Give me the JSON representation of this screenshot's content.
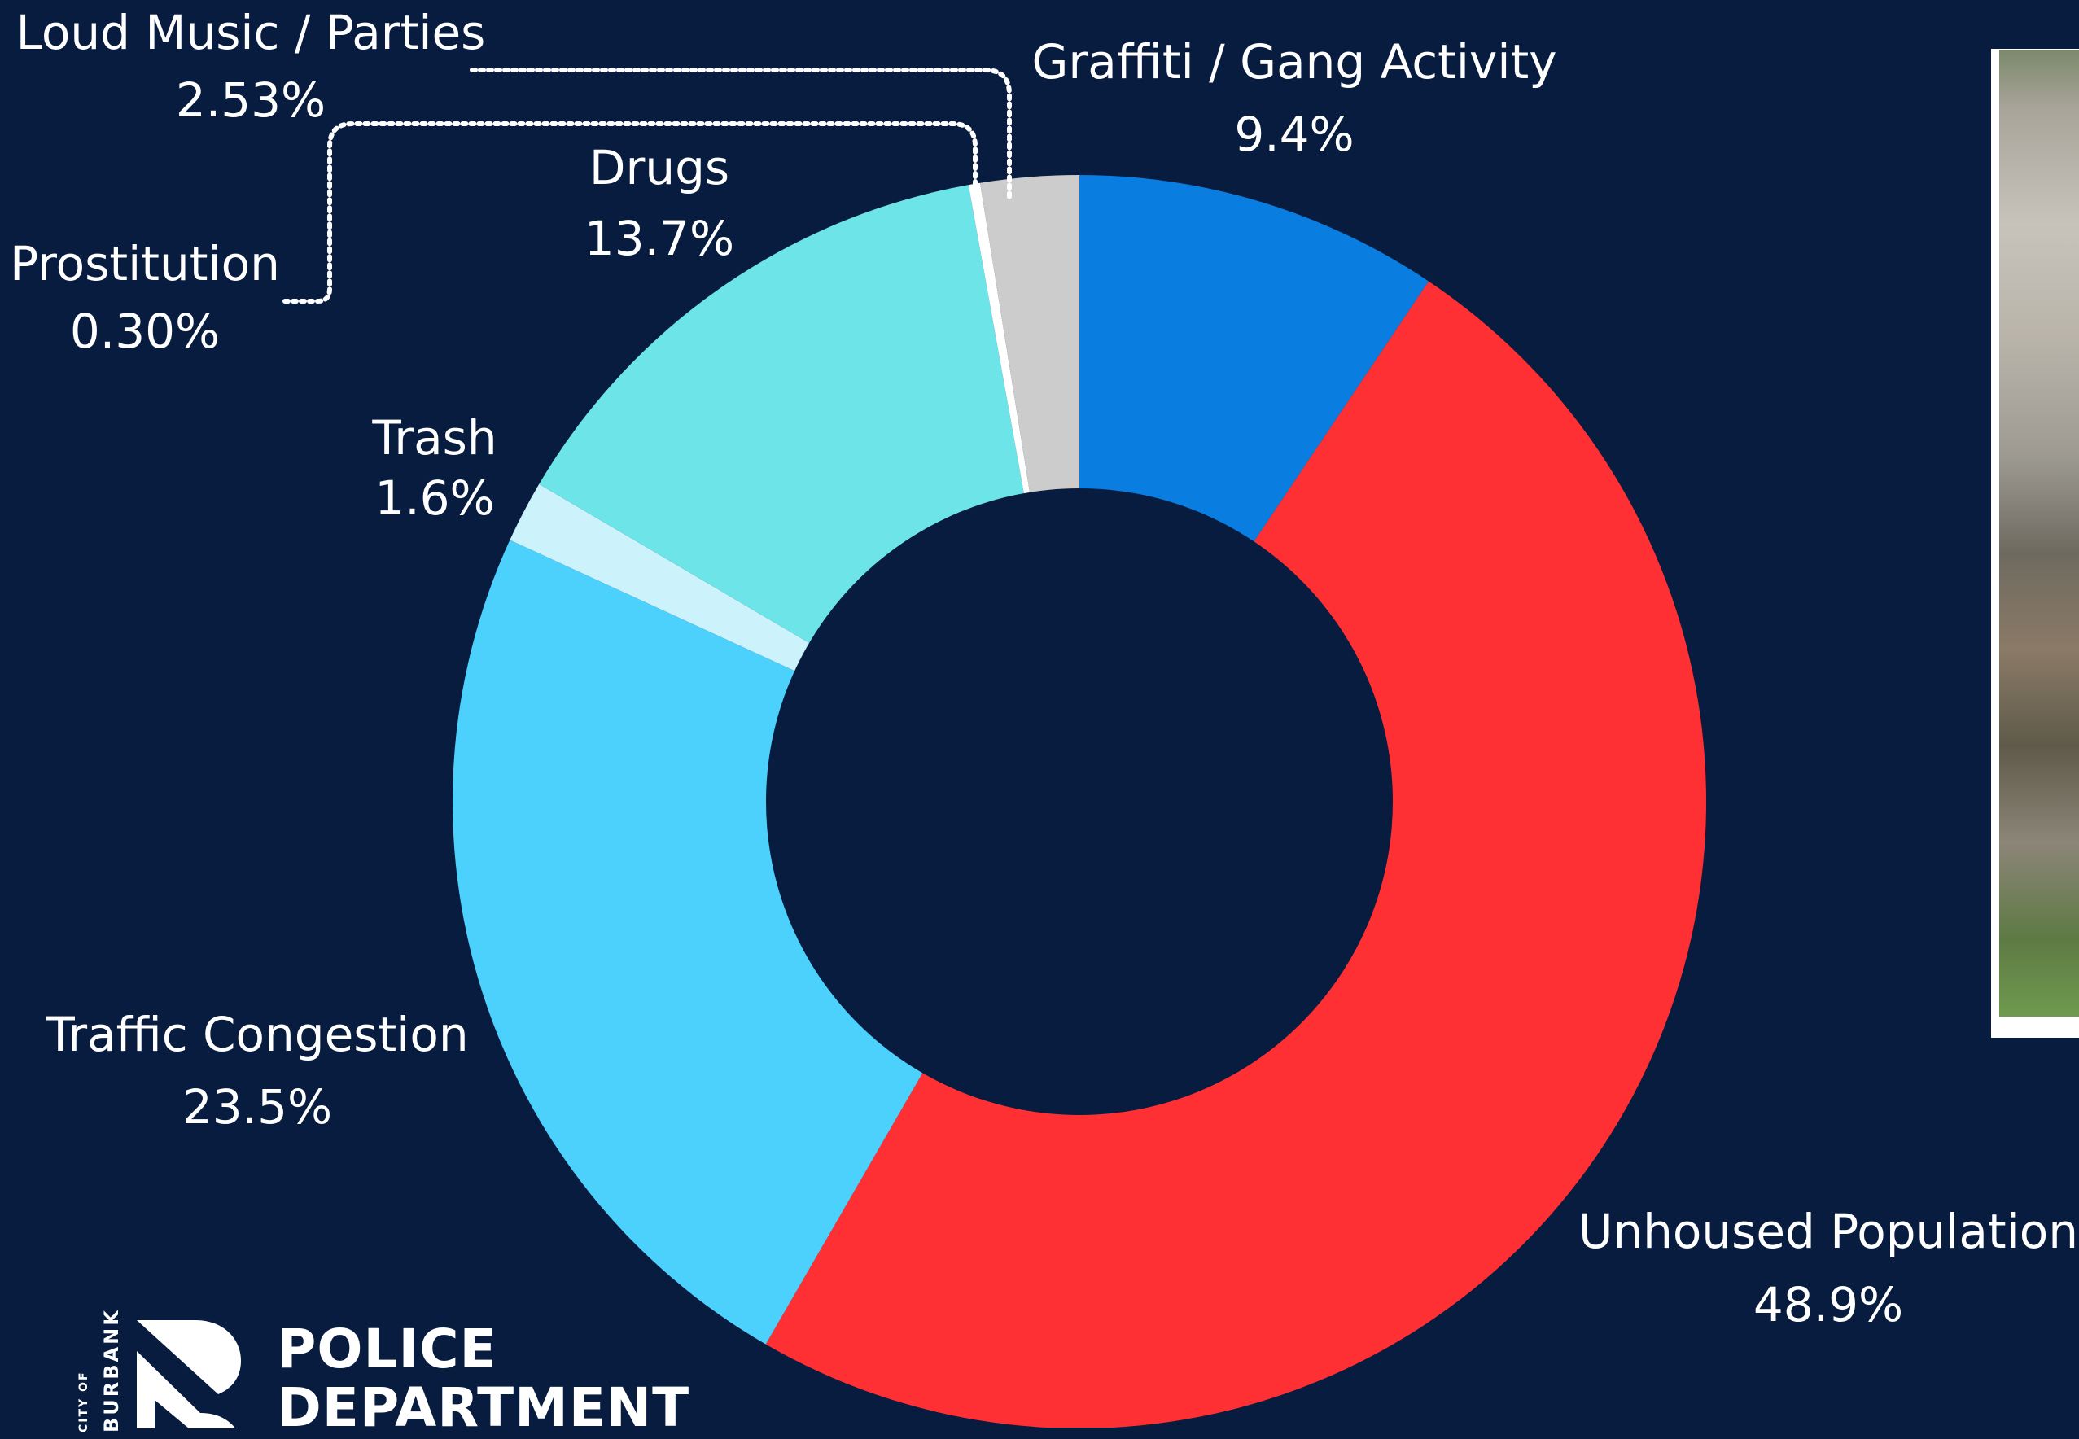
{
  "chart_data": {
    "type": "donut",
    "unit": "%",
    "slices": [
      {
        "name": "Graffiti / Gang Activity",
        "label": "9.4%",
        "value": 9.4,
        "color": "#0a7de0"
      },
      {
        "name": "Unhoused Population",
        "label": "48.9%",
        "value": 48.9,
        "color": "#ff3033"
      },
      {
        "name": "Traffic Congestion",
        "label": "23.5%",
        "value": 23.5,
        "color": "#4cd0fc"
      },
      {
        "name": "Trash",
        "label": "1.6%",
        "value": 1.6,
        "color": "#ccf3fc"
      },
      {
        "name": "Drugs",
        "label": "13.7%",
        "value": 13.7,
        "color": "#6ce4e8"
      },
      {
        "name": "Prostitution",
        "label": "0.30%",
        "value": 0.3,
        "color": "#ffffff"
      },
      {
        "name": "Loud Music / Parties",
        "label": "2.53%",
        "value": 2.53,
        "color": "#cccccc"
      }
    ],
    "background": "#081c40"
  },
  "logo": {
    "city_line1": "CITY OF",
    "city_line2": "BURBANK",
    "line1": "POLICE",
    "line2": "DEPARTMENT"
  }
}
